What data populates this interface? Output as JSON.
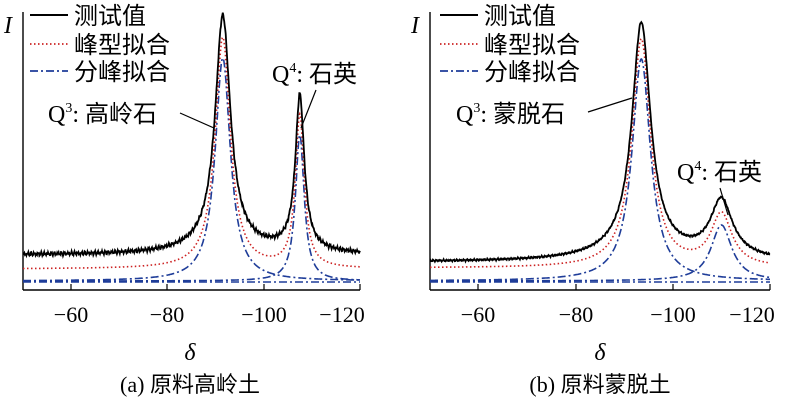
{
  "figure": {
    "panels": [
      {
        "caption": "(a) 原料高岭土",
        "ylabel": "I",
        "xlabel": "δ",
        "legend": [
          "测试值",
          "峰型拟合",
          "分峰拟合"
        ],
        "annotations": [
          {
            "label": "Q",
            "sup": "3",
            "rest": ": 高岭石"
          },
          {
            "label": "Q",
            "sup": "4",
            "rest": ": 石英"
          }
        ]
      },
      {
        "caption": "(b) 原料蒙脱土",
        "ylabel": "I",
        "xlabel": "δ",
        "legend": [
          "测试值",
          "峰型拟合",
          "分峰拟合"
        ],
        "annotations": [
          {
            "label": "Q",
            "sup": "3",
            "rest": ": 蒙脱石"
          },
          {
            "label": "Q",
            "sup": "4",
            "rest": ": 石英"
          }
        ]
      }
    ]
  },
  "chart_data": [
    {
      "type": "line",
      "title": "(a) 原料高岭土",
      "xlabel": "δ",
      "ylabel": "I",
      "x_reversed": true,
      "xlim": [
        -50,
        -120
      ],
      "xticks": [
        -60,
        -80,
        -100,
        -120
      ],
      "tick_labels": [
        "−60",
        "−80",
        "−100",
        "−120"
      ],
      "legend_position": "top-left",
      "grid": false,
      "series": [
        {
          "name": "测试值",
          "style": "solid",
          "color": "#000000"
        },
        {
          "name": "峰型拟合",
          "style": "dotted",
          "color": "#cc2222"
        },
        {
          "name": "分峰拟合",
          "style": "dashdot",
          "color": "#1f3d99"
        }
      ],
      "peaks": [
        {
          "assignment": "Q3: 高岭石",
          "position": -91.5,
          "relative_height": 1.0
        },
        {
          "assignment": "Q4: 石英",
          "position": -107.5,
          "relative_height": 0.72
        }
      ]
    },
    {
      "type": "line",
      "title": "(b) 原料蒙脱土",
      "xlabel": "δ",
      "ylabel": "I",
      "x_reversed": true,
      "xlim": [
        -50,
        -120
      ],
      "xticks": [
        -60,
        -80,
        -100,
        -120
      ],
      "tick_labels": [
        "−60",
        "−80",
        "−100",
        "−120"
      ],
      "legend_position": "top-left",
      "grid": false,
      "series": [
        {
          "name": "测试值",
          "style": "solid",
          "color": "#000000"
        },
        {
          "name": "峰型拟合",
          "style": "dotted",
          "color": "#cc2222"
        },
        {
          "name": "分峰拟合",
          "style": "dashdot",
          "color": "#1f3d99"
        }
      ],
      "peaks": [
        {
          "assignment": "Q3: 蒙脱石",
          "position": -93.5,
          "relative_height": 1.0
        },
        {
          "assignment": "Q4: 石英",
          "position": -110.0,
          "relative_height": 0.28
        }
      ]
    }
  ]
}
